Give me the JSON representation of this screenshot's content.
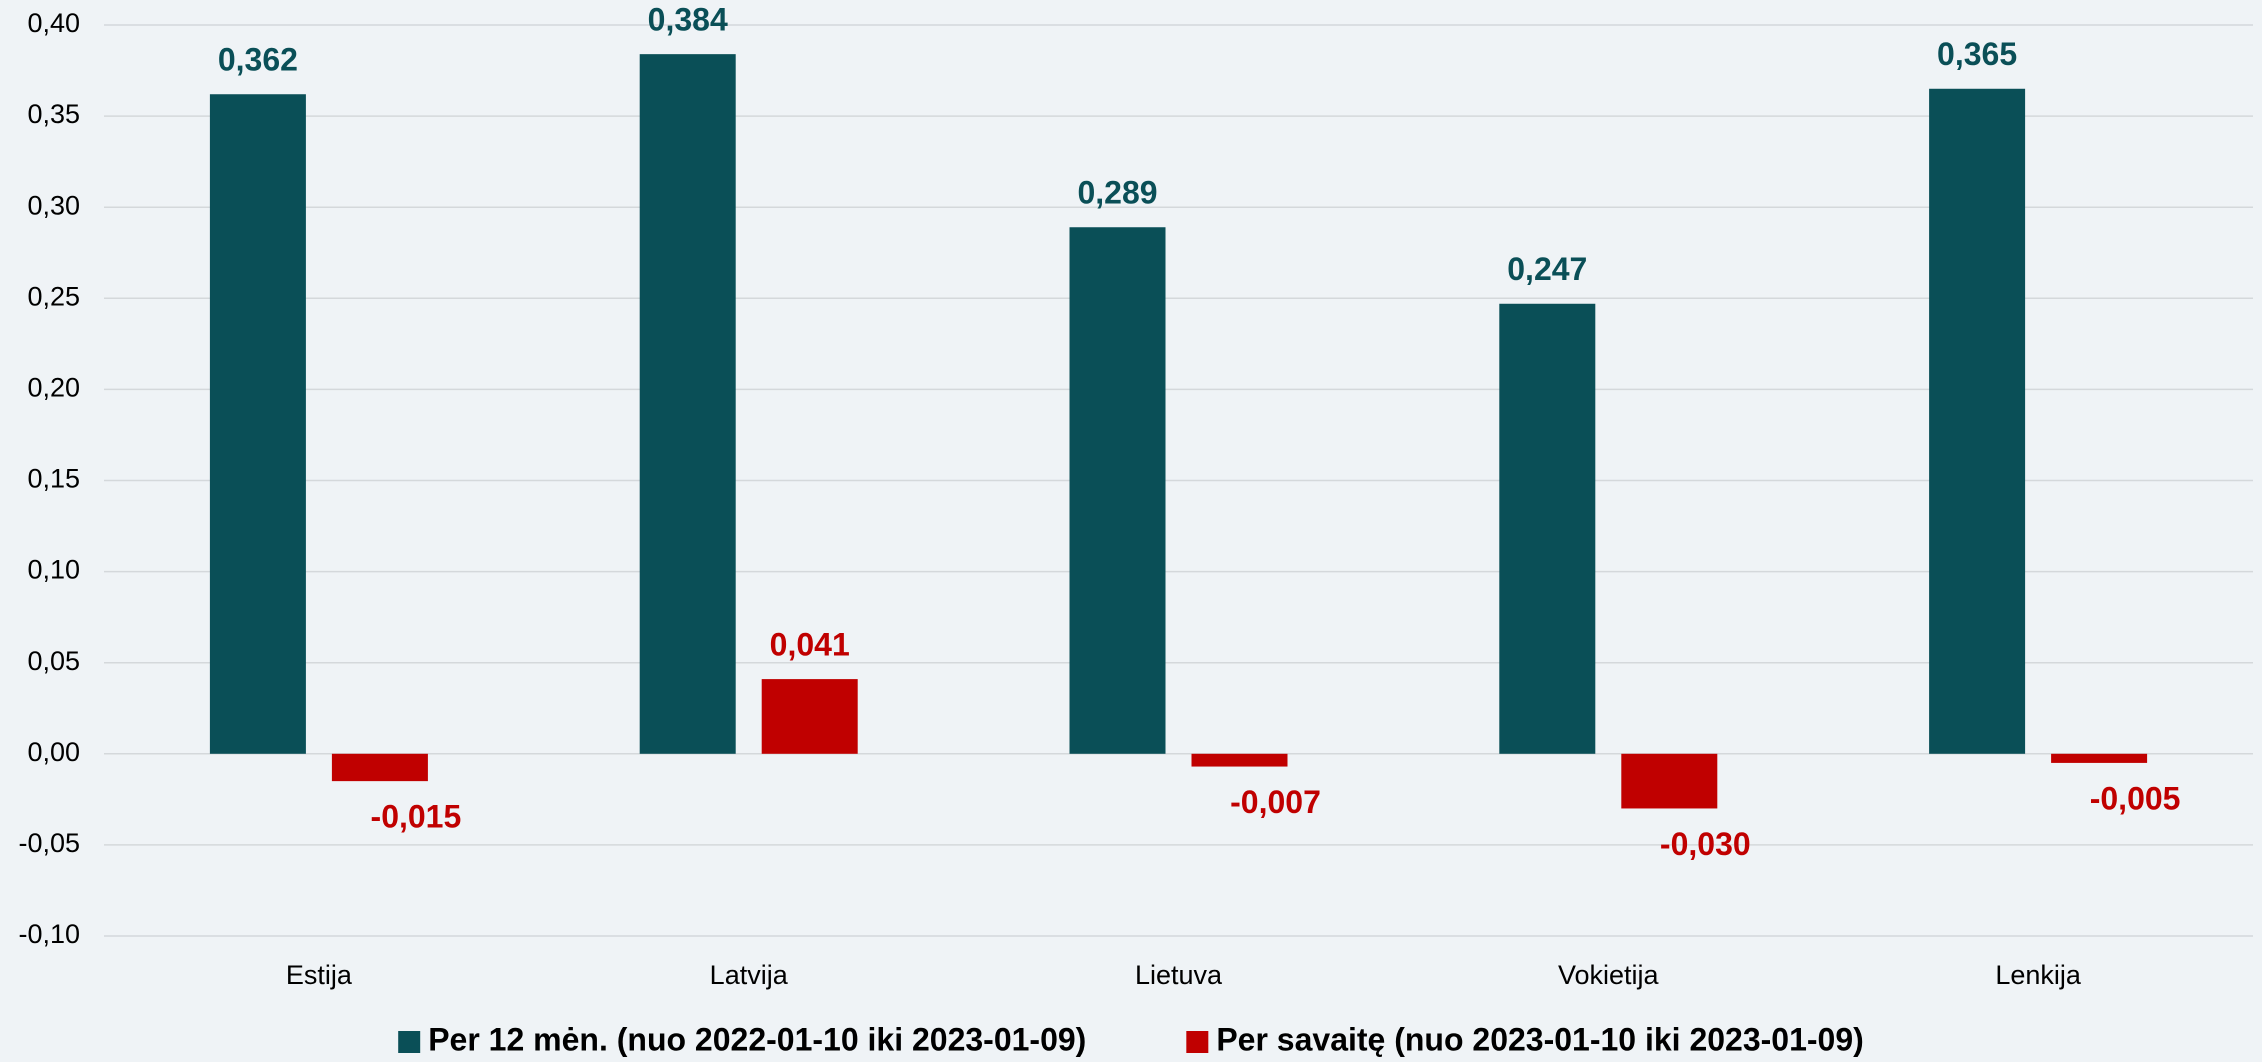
{
  "chart_data": {
    "type": "bar",
    "categories": [
      "Estija",
      "Latvija",
      "Lietuva",
      "Vokietija",
      "Lenkija"
    ],
    "series": [
      {
        "name": "Per 12 mėn. (nuo 2022-01-10 iki 2023-01-09)",
        "color": "#0a4f57",
        "values": [
          0.362,
          0.384,
          0.289,
          0.247,
          0.365
        ],
        "value_labels": [
          "0,362",
          "0,384",
          "0,289",
          "0,247",
          "0,365"
        ]
      },
      {
        "name": "Per savaitę (nuo 2023-01-10 iki 2023-01-09)",
        "color": "#c00000",
        "values": [
          -0.015,
          0.041,
          -0.007,
          -0.03,
          -0.005
        ],
        "value_labels": [
          "-0,015",
          "0,041",
          "-0,007",
          "-0,030",
          "-0,005"
        ]
      }
    ],
    "ylim": [
      -0.1,
      0.4
    ],
    "yticks": [
      {
        "value": -0.1,
        "label": "-0,10"
      },
      {
        "value": -0.05,
        "label": "-0,05"
      },
      {
        "value": 0,
        "label": "0,00"
      },
      {
        "value": 0.05,
        "label": "0,05"
      },
      {
        "value": 0.1,
        "label": "0,10"
      },
      {
        "value": 0.15,
        "label": "0,15"
      },
      {
        "value": 0.2,
        "label": "0,20"
      },
      {
        "value": 0.25,
        "label": "0,25"
      },
      {
        "value": 0.3,
        "label": "0,30"
      },
      {
        "value": 0.35,
        "label": "0,35"
      },
      {
        "value": 0.4,
        "label": "0,40"
      }
    ],
    "grid": true,
    "legend": "bottom"
  }
}
